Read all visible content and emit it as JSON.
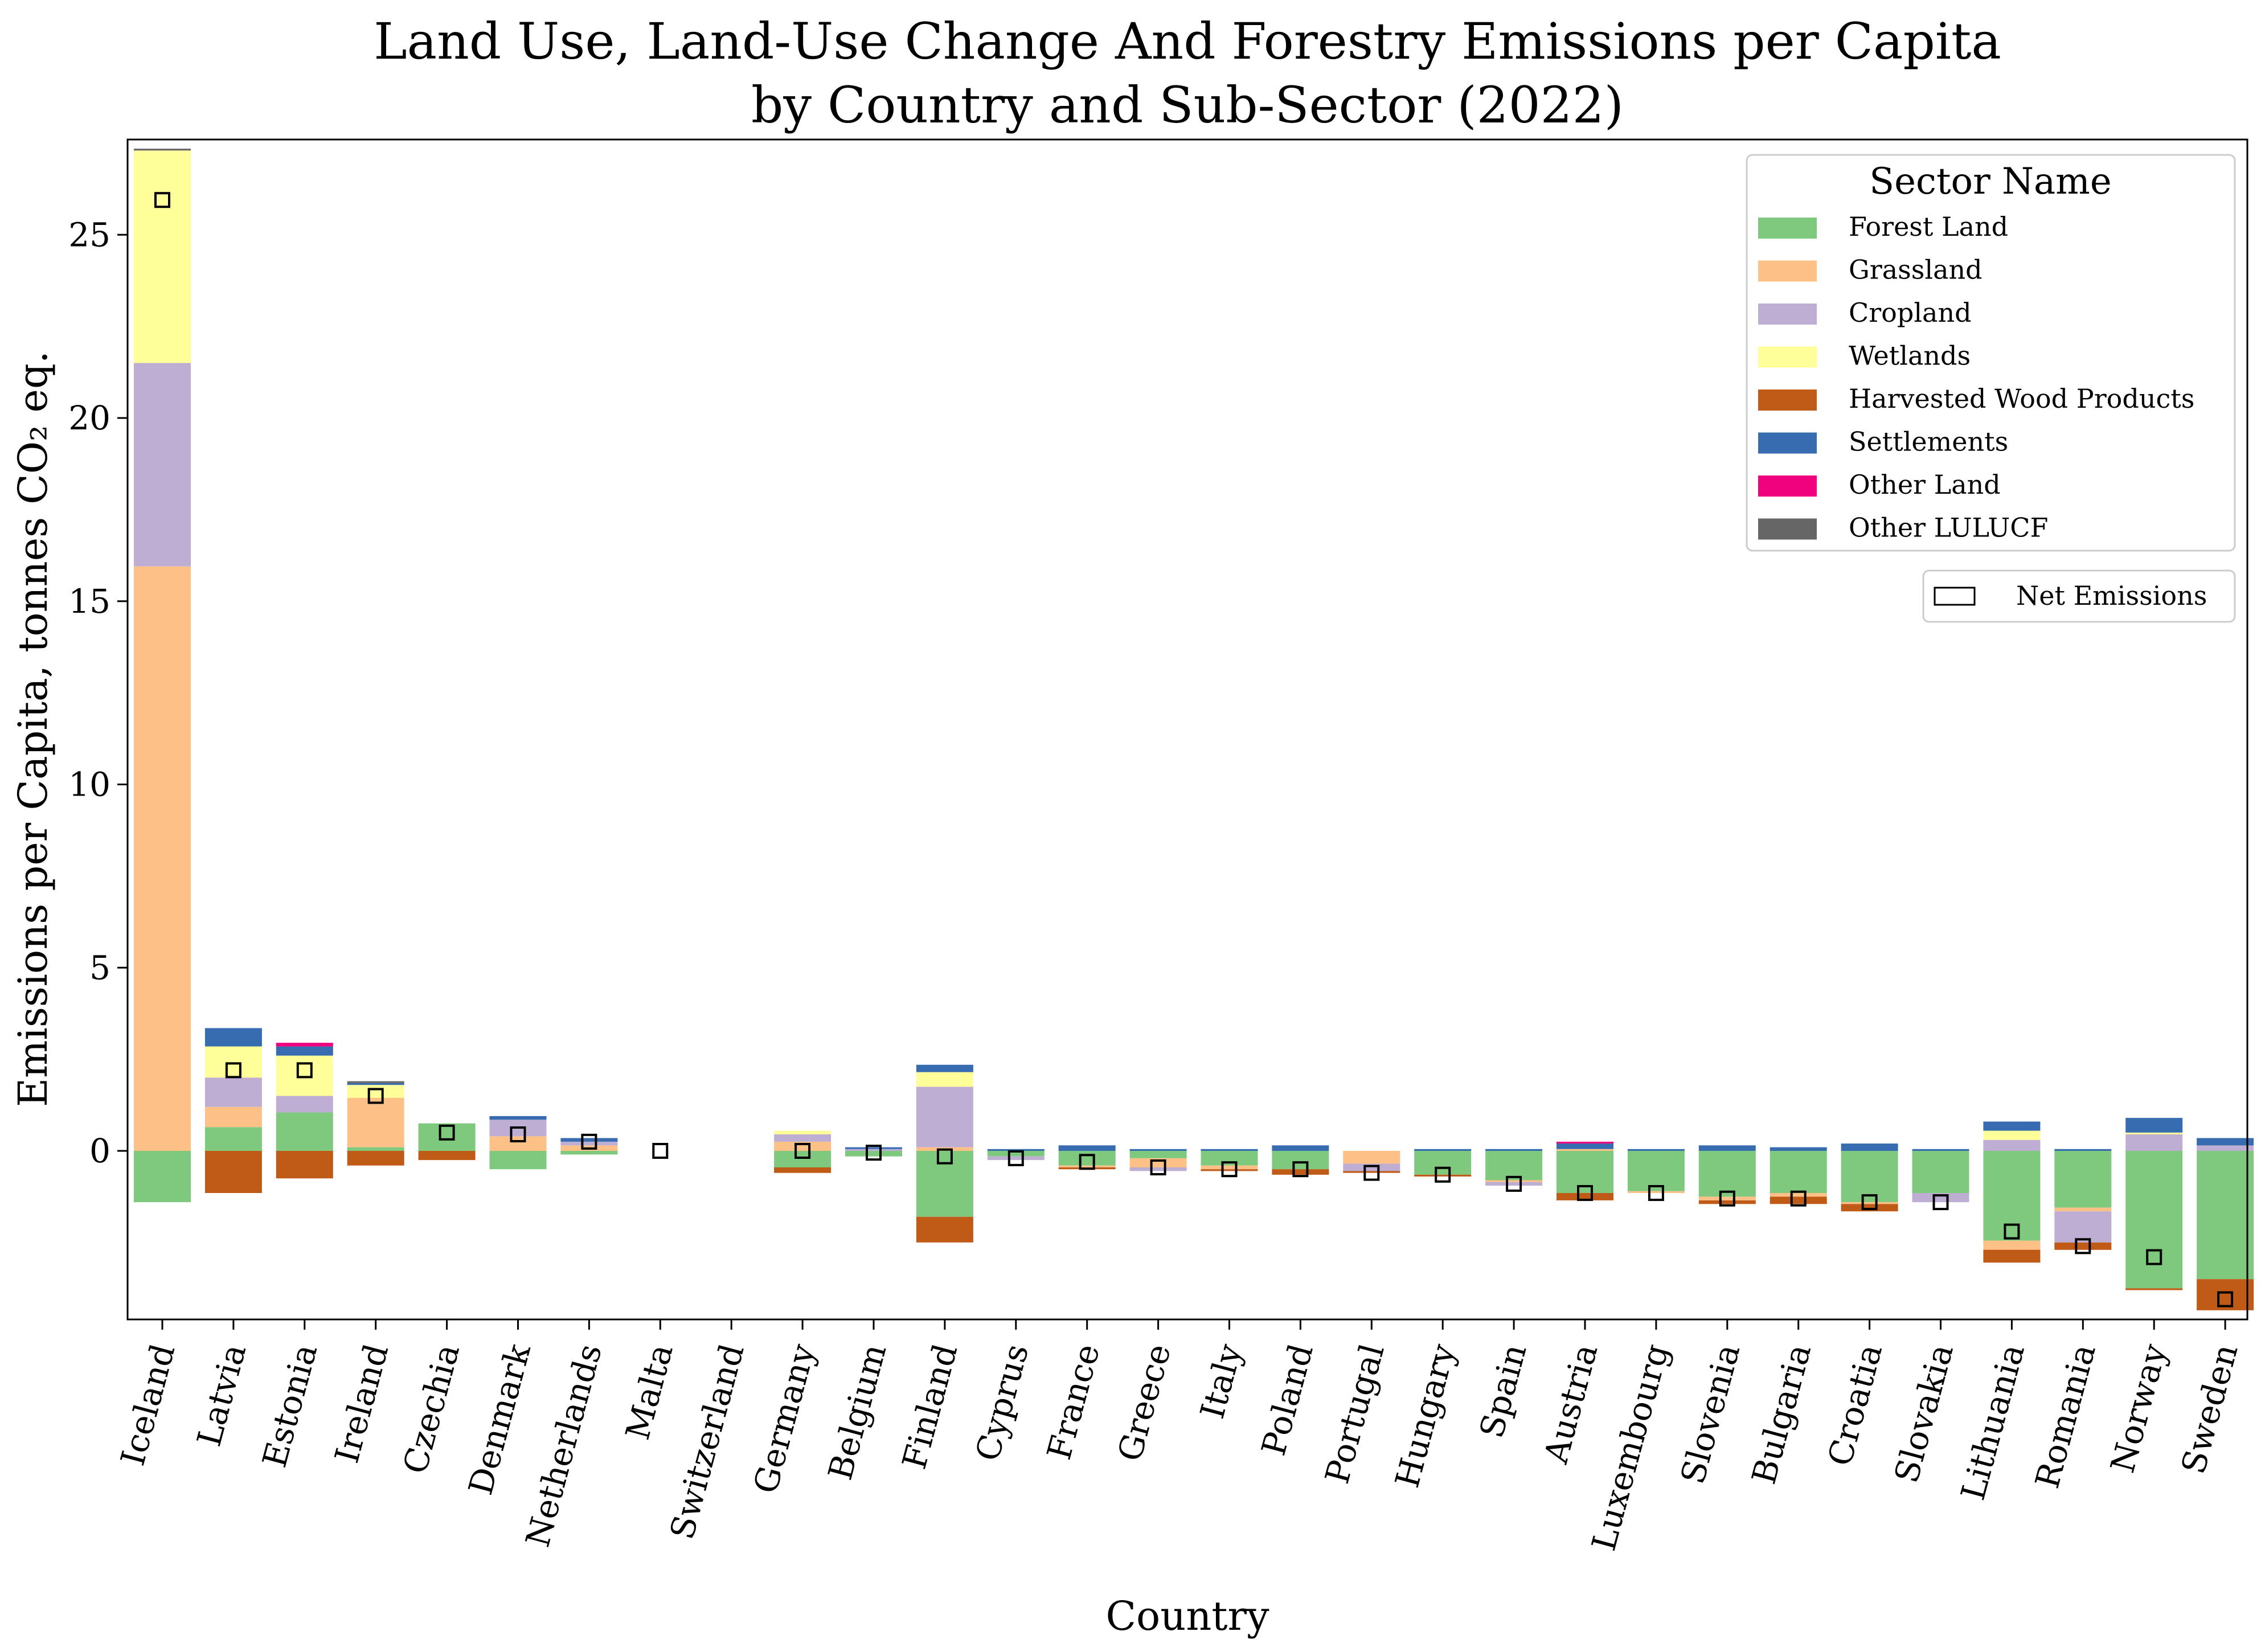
{
  "chart_data": {
    "type": "bar",
    "stacked": true,
    "title": "Land Use, Land-Use Change And Forestry Emissions per Capita",
    "subtitle": "by Country and Sub-Sector (2022)",
    "xlabel": "Country",
    "ylabel": "Emissions per Capita, tonnes CO₂ eq.",
    "ylim": [
      -4.6,
      27.6
    ],
    "yticks": [
      0,
      5,
      10,
      15,
      20,
      25
    ],
    "grid": false,
    "legend_title": "Sector Name",
    "legend_placement": "top-right",
    "net_label": "Net Emissions",
    "categories": [
      "Iceland",
      "Latvia",
      "Estonia",
      "Ireland",
      "Czechia",
      "Denmark",
      "Netherlands",
      "Malta",
      "Switzerland",
      "Germany",
      "Belgium",
      "Finland",
      "Cyprus",
      "France",
      "Greece",
      "Italy",
      "Poland",
      "Portugal",
      "Hungary",
      "Spain",
      "Austria",
      "Luxembourg",
      "Slovenia",
      "Bulgaria",
      "Croatia",
      "Slovakia",
      "Lithuania",
      "Romania",
      "Norway",
      "Sweden"
    ],
    "series": [
      {
        "name": "Forest Land",
        "color": "#7fc97f",
        "values": [
          -1.4,
          0.65,
          1.05,
          0.1,
          0.75,
          -0.5,
          -0.1,
          0.0,
          0.0,
          -0.45,
          -0.15,
          -1.8,
          -0.15,
          -0.4,
          -0.2,
          -0.4,
          -0.5,
          0.0,
          -0.65,
          -0.8,
          -1.15,
          -1.1,
          -1.25,
          -1.15,
          -1.4,
          -1.15,
          -2.45,
          -1.55,
          -3.75,
          -3.5
        ]
      },
      {
        "name": "Grassland",
        "color": "#fdc086",
        "values": [
          15.95,
          0.55,
          0.0,
          1.35,
          0.0,
          0.4,
          0.15,
          0.0,
          0.0,
          0.25,
          0.0,
          0.1,
          0.0,
          -0.05,
          -0.25,
          -0.1,
          0.0,
          -0.35,
          0.0,
          -0.05,
          0.05,
          -0.05,
          -0.1,
          -0.1,
          -0.05,
          0.0,
          -0.25,
          -0.1,
          0.0,
          0.0
        ]
      },
      {
        "name": "Cropland",
        "color": "#beaed4",
        "values": [
          5.55,
          0.8,
          0.45,
          0.0,
          0.0,
          0.45,
          0.1,
          0.0,
          0.0,
          0.2,
          0.05,
          1.65,
          -0.1,
          0.0,
          -0.1,
          0.0,
          0.0,
          -0.2,
          0.0,
          -0.1,
          0.0,
          0.0,
          0.0,
          0.0,
          0.0,
          -0.25,
          0.3,
          -0.85,
          0.45,
          0.15
        ]
      },
      {
        "name": "Wetlands",
        "color": "#ffff99",
        "values": [
          5.8,
          0.85,
          1.1,
          0.35,
          0.0,
          0.0,
          0.0,
          0.0,
          0.0,
          0.1,
          0.0,
          0.4,
          0.0,
          0.0,
          0.0,
          0.0,
          0.0,
          0.0,
          0.0,
          0.0,
          0.0,
          0.0,
          0.0,
          0.0,
          0.0,
          0.0,
          0.25,
          0.0,
          0.05,
          0.0
        ]
      },
      {
        "name": "Harvested Wood Products",
        "color": "#bf5b17",
        "values": [
          0.0,
          -1.15,
          -0.75,
          -0.4,
          -0.25,
          0.0,
          0.0,
          0.0,
          0.0,
          -0.15,
          0.0,
          -0.7,
          0.0,
          -0.05,
          0.0,
          -0.05,
          -0.15,
          -0.05,
          -0.05,
          0.0,
          -0.2,
          0.0,
          -0.1,
          -0.2,
          -0.2,
          0.0,
          -0.35,
          -0.2,
          -0.05,
          -0.85
        ]
      },
      {
        "name": "Settlements",
        "color": "#386cb0",
        "values": [
          0.0,
          0.5,
          0.25,
          0.05,
          0.0,
          0.1,
          0.1,
          0.0,
          0.0,
          0.0,
          0.05,
          0.2,
          0.05,
          0.15,
          0.05,
          0.05,
          0.15,
          0.0,
          0.05,
          0.05,
          0.15,
          0.05,
          0.15,
          0.1,
          0.2,
          0.05,
          0.25,
          0.05,
          0.4,
          0.2
        ]
      },
      {
        "name": "Other Land",
        "color": "#f0027f",
        "values": [
          0.0,
          0.0,
          0.1,
          0.0,
          0.0,
          0.0,
          0.0,
          0.0,
          0.0,
          0.0,
          0.0,
          0.0,
          0.0,
          0.0,
          0.0,
          0.0,
          0.0,
          0.0,
          0.0,
          0.0,
          0.05,
          0.0,
          0.0,
          0.0,
          0.0,
          0.0,
          0.0,
          0.0,
          0.0,
          0.0
        ]
      },
      {
        "name": "Other LULUCF",
        "color": "#666666",
        "values": [
          0.05,
          0.0,
          0.0,
          0.05,
          0.0,
          0.0,
          0.0,
          0.0,
          0.0,
          0.0,
          0.0,
          0.0,
          0.0,
          0.0,
          0.0,
          0.0,
          0.0,
          0.0,
          0.0,
          0.0,
          0.0,
          0.0,
          0.0,
          0.0,
          0.0,
          0.0,
          0.0,
          0.0,
          0.0,
          0.0
        ]
      }
    ],
    "net_emissions": [
      25.95,
      2.2,
      2.2,
      1.5,
      0.5,
      0.45,
      0.25,
      0.0,
      null,
      0.0,
      -0.05,
      -0.15,
      -0.2,
      -0.3,
      -0.45,
      -0.5,
      -0.5,
      -0.6,
      -0.65,
      -0.9,
      -1.15,
      -1.15,
      -1.3,
      -1.3,
      -1.4,
      -1.4,
      -2.2,
      -2.6,
      -2.9,
      -4.05
    ]
  }
}
